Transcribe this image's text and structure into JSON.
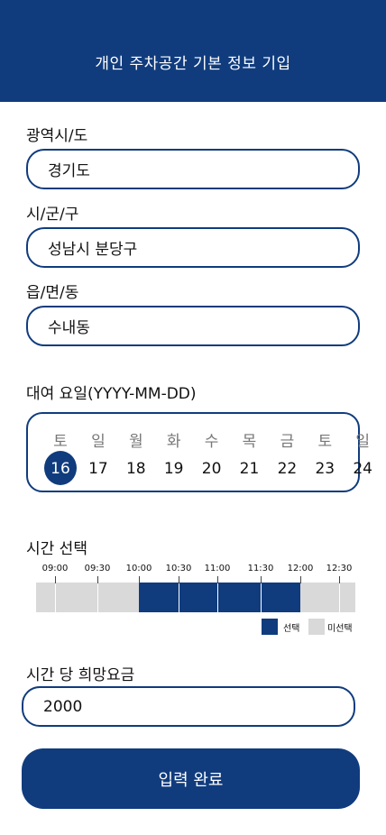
{
  "header": {
    "title": "개인 주차공간 기본 정보 기입"
  },
  "fields": {
    "province": {
      "label": "광역시/도",
      "value": "경기도"
    },
    "city": {
      "label": "시/군/구",
      "value": "성남시 분당구"
    },
    "town": {
      "label": "읍/면/동",
      "value": "수내동"
    }
  },
  "date": {
    "label": "대여 요일(YYYY-MM-DD)",
    "days": [
      {
        "dow": "토",
        "num": "16",
        "selected": true
      },
      {
        "dow": "일",
        "num": "17",
        "selected": false
      },
      {
        "dow": "월",
        "num": "18",
        "selected": false
      },
      {
        "dow": "화",
        "num": "19",
        "selected": false
      },
      {
        "dow": "수",
        "num": "20",
        "selected": false
      },
      {
        "dow": "목",
        "num": "21",
        "selected": false
      },
      {
        "dow": "금",
        "num": "22",
        "selected": false
      },
      {
        "dow": "토",
        "num": "23",
        "selected": false
      },
      {
        "dow": "일",
        "num": "24",
        "selected": false
      }
    ]
  },
  "time": {
    "label": "시간 선택",
    "ticks": [
      "09:00",
      "09:30",
      "10:00",
      "10:30",
      "11:00",
      "11:30",
      "12:00",
      "12:30"
    ],
    "selected_range": [
      "10:00",
      "12:00"
    ],
    "legend": {
      "selected": "선택",
      "unselected": "미선택"
    },
    "colors": {
      "selected": "#103c7e",
      "unselected": "#d9d9d9"
    }
  },
  "price": {
    "label": "시간 당 희망요금",
    "value": "2000"
  },
  "submit_label": "입력 완료",
  "colors": {
    "primary": "#103c7e"
  }
}
